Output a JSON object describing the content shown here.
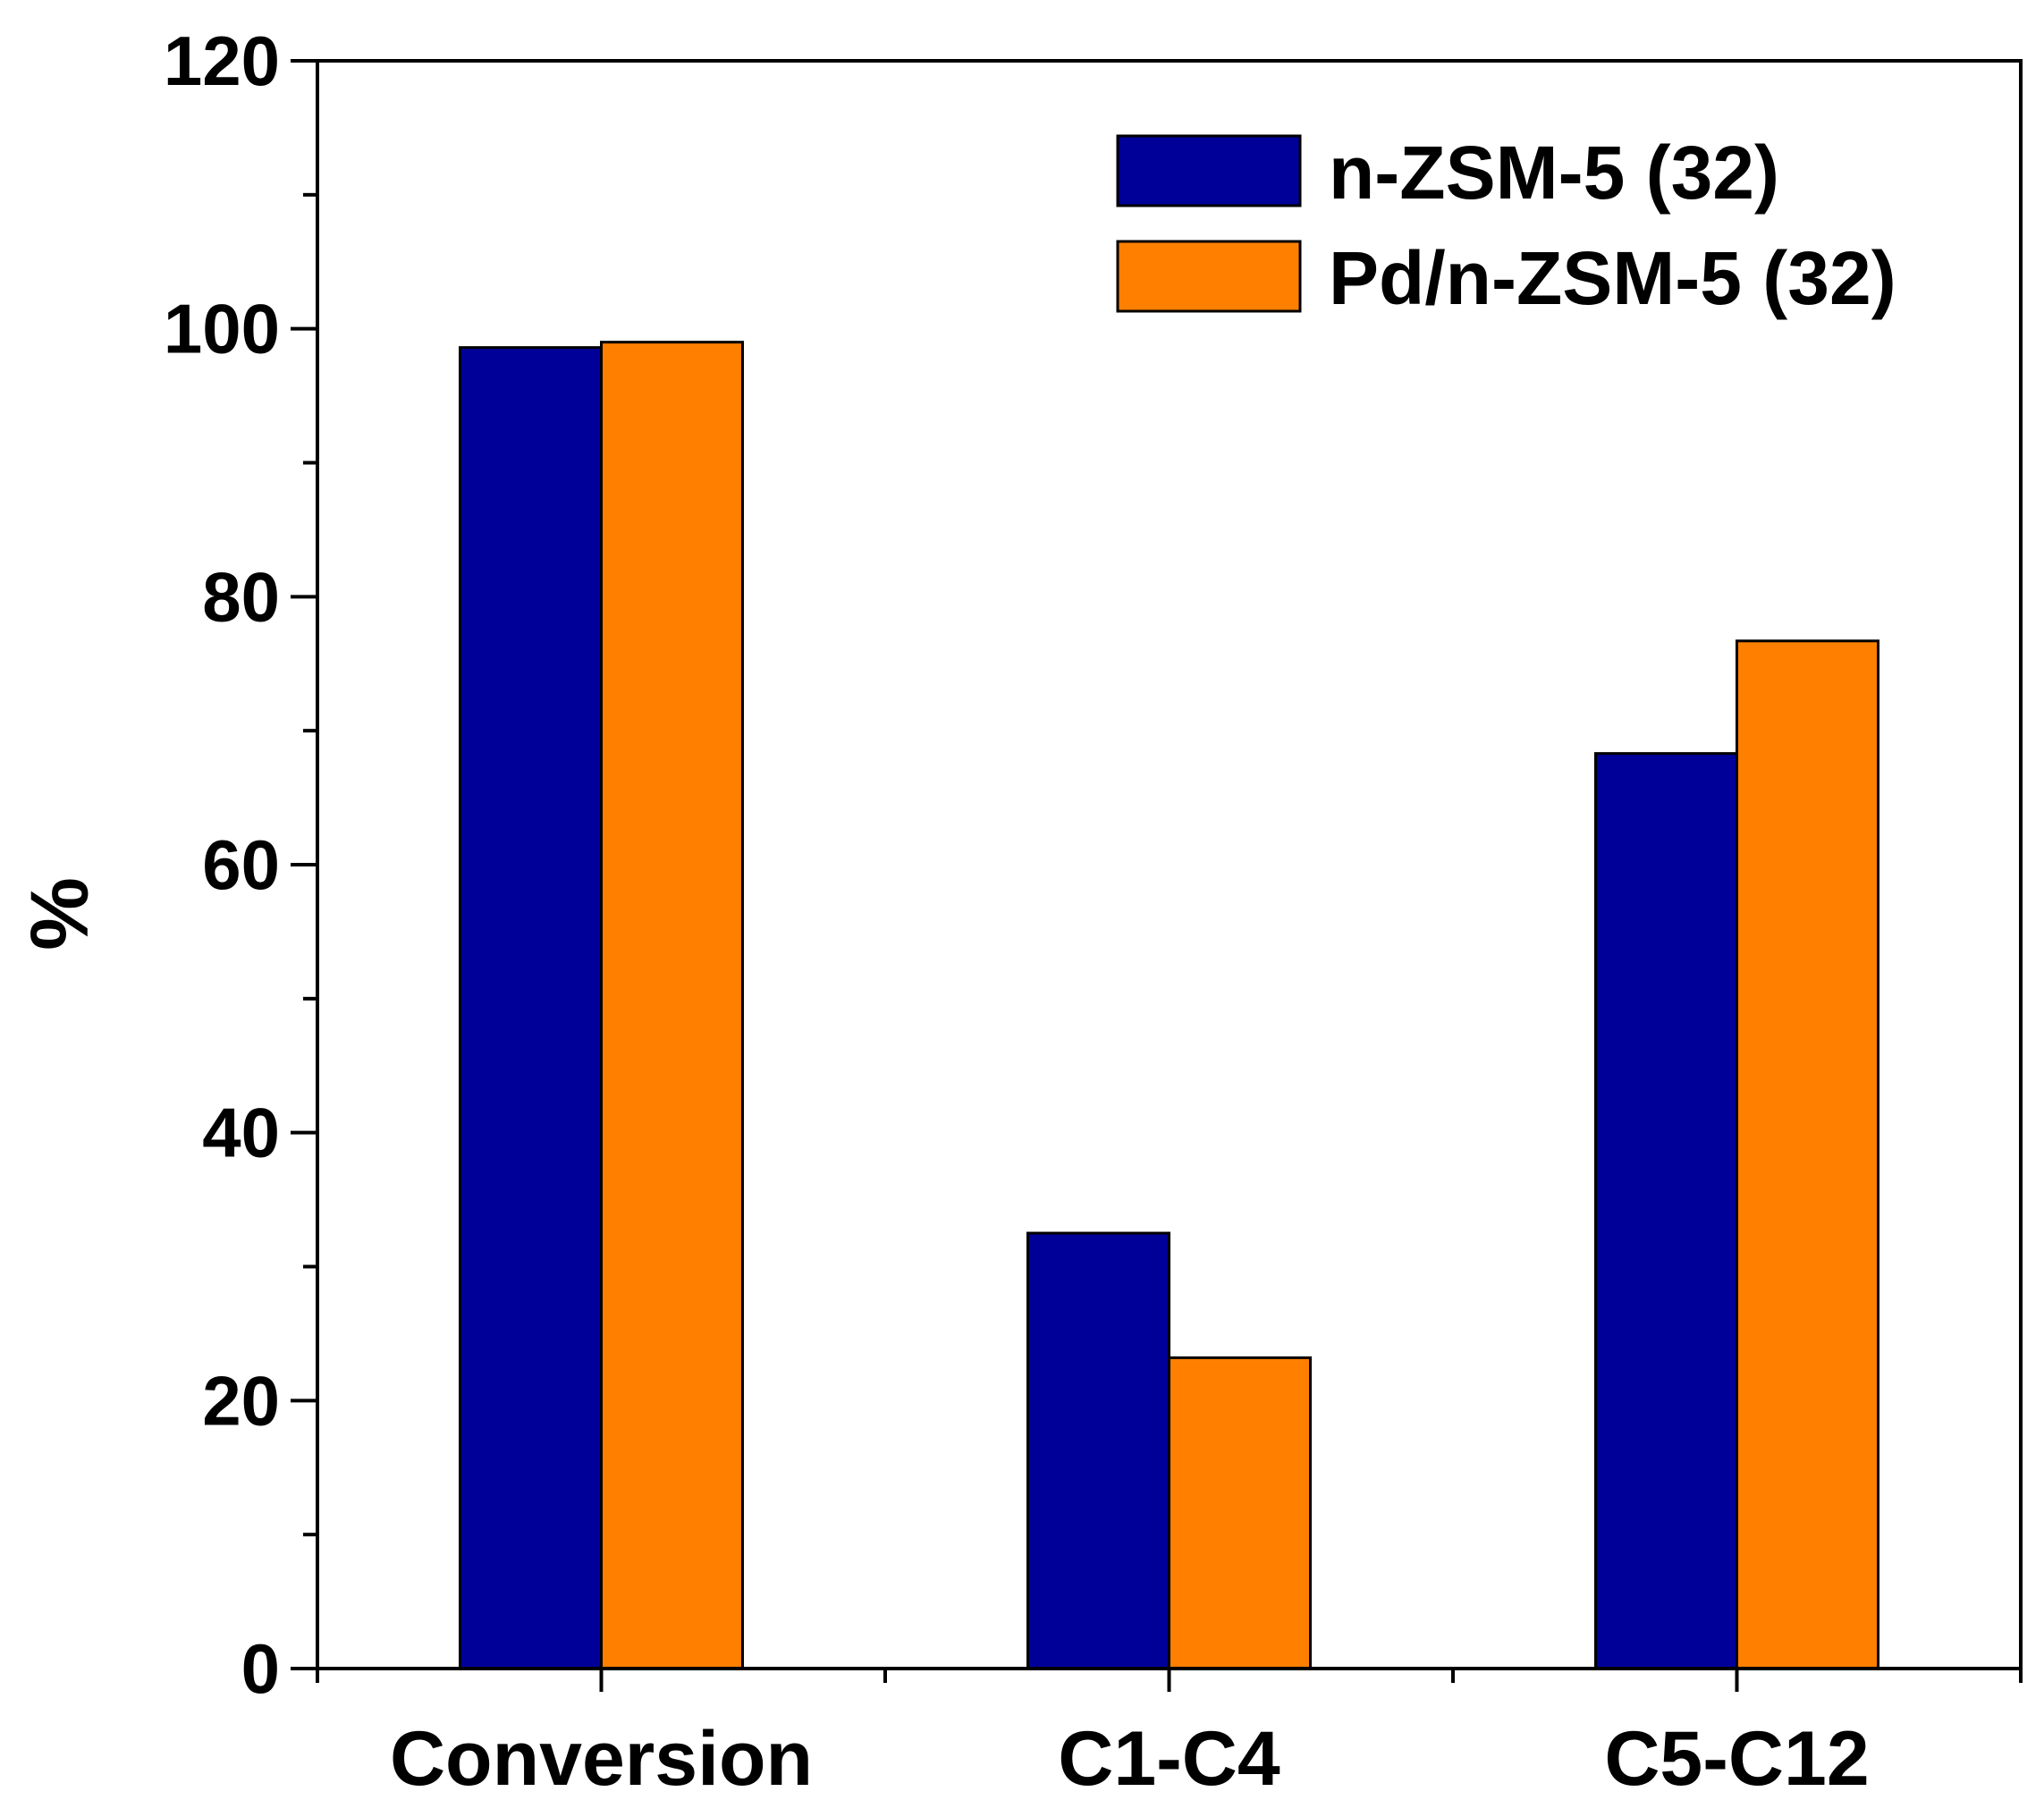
{
  "chart_data": {
    "type": "bar",
    "title": "",
    "xlabel": "",
    "ylabel": "%",
    "ylim": [
      0,
      120
    ],
    "yticks": [
      0,
      20,
      40,
      60,
      80,
      100,
      120
    ],
    "categories": [
      "Conversion",
      "C1-C4",
      "C5-C12"
    ],
    "series": [
      {
        "name": "n-ZSM-5 (32)",
        "color": "#000099",
        "values": [
          98.6,
          32.5,
          68.3
        ]
      },
      {
        "name": "Pd/n-ZSM-5 (32)",
        "color": "#ff8000",
        "values": [
          99.0,
          23.2,
          76.7
        ]
      }
    ],
    "legend_position": "top-right",
    "grid": false
  }
}
